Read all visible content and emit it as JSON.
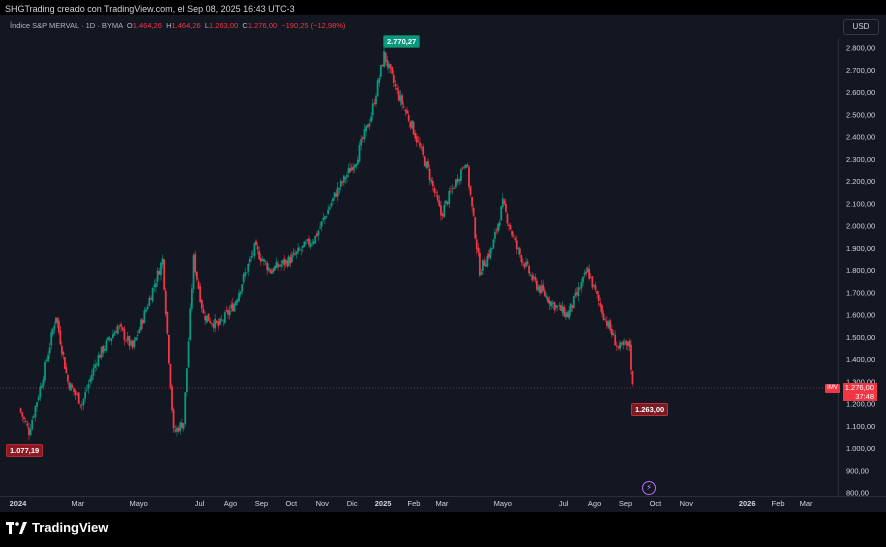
{
  "header": {
    "caption": "SHGTrading creado con TradingView.com, el Sep 08, 2025 16:43 UTC-3",
    "symbol_line": "Índice S&P MERVAL · 1D · BYMA",
    "o_label": "O",
    "o_value": "1.464,26",
    "h_label": "H",
    "h_value": "1.464,26",
    "l_label": "L",
    "l_value": "1.263,00",
    "c_label": "C",
    "c_value": "1.276,00",
    "change": "−190,25 (−12,98%)"
  },
  "currency_button": "USD",
  "price_axis": {
    "ticks": [
      "2.800,00",
      "2.700,00",
      "2.600,00",
      "2.500,00",
      "2.400,00",
      "2.300,00",
      "2.200,00",
      "2.100,00",
      "2.000,00",
      "1.900,00",
      "1.800,00",
      "1.700,00",
      "1.600,00",
      "1.500,00",
      "1.400,00",
      "1.300,00",
      "1.200,00",
      "1.100,00",
      "1.000,00",
      "900,00",
      "800,00"
    ],
    "last_price": "1.276,00",
    "countdown": "37:48",
    "symbol_badge": "IMV"
  },
  "time_axis": {
    "labels": [
      {
        "text": "2024",
        "bold": true
      },
      {
        "text": "Mar",
        "bold": false
      },
      {
        "text": "Mayo",
        "bold": false
      },
      {
        "text": "Jul",
        "bold": false
      },
      {
        "text": "Ago",
        "bold": false
      },
      {
        "text": "Sep",
        "bold": false
      },
      {
        "text": "Oct",
        "bold": false
      },
      {
        "text": "Nov",
        "bold": false
      },
      {
        "text": "Dic",
        "bold": false
      },
      {
        "text": "2025",
        "bold": true
      },
      {
        "text": "Feb",
        "bold": false
      },
      {
        "text": "Mar",
        "bold": false
      },
      {
        "text": "Mayo",
        "bold": false
      },
      {
        "text": "Jul",
        "bold": false
      },
      {
        "text": "Ago",
        "bold": false
      },
      {
        "text": "Sep",
        "bold": false
      },
      {
        "text": "Oct",
        "bold": false
      },
      {
        "text": "Nov",
        "bold": false
      },
      {
        "text": "2026",
        "bold": true
      },
      {
        "text": "Feb",
        "bold": false
      },
      {
        "text": "Mar",
        "bold": false
      }
    ]
  },
  "annotations": {
    "high": "2.770,27",
    "low_2024": "1.077,19",
    "low_recent": "1.263,00"
  },
  "footer": {
    "brand": "TradingView"
  },
  "colors": {
    "up": "#089981",
    "down": "#f23645",
    "background": "#131722"
  },
  "chart_data": {
    "type": "candlestick",
    "y_range": [
      800,
      2800
    ],
    "x_range": [
      "2024-01",
      "2026-03"
    ],
    "price_path": [
      {
        "date": "2024-01-02",
        "close": 1180
      },
      {
        "date": "2024-01-12",
        "close": 1077
      },
      {
        "date": "2024-01-25",
        "close": 1300
      },
      {
        "date": "2024-02-08",
        "close": 1600
      },
      {
        "date": "2024-02-20",
        "close": 1300
      },
      {
        "date": "2024-03-05",
        "close": 1200
      },
      {
        "date": "2024-03-20",
        "close": 1400
      },
      {
        "date": "2024-04-10",
        "close": 1550
      },
      {
        "date": "2024-04-25",
        "close": 1450
      },
      {
        "date": "2024-05-10",
        "close": 1650
      },
      {
        "date": "2024-05-25",
        "close": 1850
      },
      {
        "date": "2024-06-05",
        "close": 1070
      },
      {
        "date": "2024-06-15",
        "close": 1120
      },
      {
        "date": "2024-06-25",
        "close": 1850
      },
      {
        "date": "2024-07-05",
        "close": 1600
      },
      {
        "date": "2024-07-20",
        "close": 1550
      },
      {
        "date": "2024-08-05",
        "close": 1650
      },
      {
        "date": "2024-08-25",
        "close": 1900
      },
      {
        "date": "2024-09-10",
        "close": 1800
      },
      {
        "date": "2024-09-30",
        "close": 1850
      },
      {
        "date": "2024-10-25",
        "close": 1950
      },
      {
        "date": "2024-11-15",
        "close": 2150
      },
      {
        "date": "2024-12-05",
        "close": 2300
      },
      {
        "date": "2024-12-20",
        "close": 2500
      },
      {
        "date": "2025-01-02",
        "close": 2770
      },
      {
        "date": "2025-01-15",
        "close": 2600
      },
      {
        "date": "2025-01-30",
        "close": 2450
      },
      {
        "date": "2025-02-15",
        "close": 2250
      },
      {
        "date": "2025-02-28",
        "close": 2050
      },
      {
        "date": "2025-03-15",
        "close": 2200
      },
      {
        "date": "2025-03-25",
        "close": 2300
      },
      {
        "date": "2025-04-08",
        "close": 1800
      },
      {
        "date": "2025-04-20",
        "close": 1900
      },
      {
        "date": "2025-05-01",
        "close": 2100
      },
      {
        "date": "2025-05-15",
        "close": 1900
      },
      {
        "date": "2025-06-01",
        "close": 1750
      },
      {
        "date": "2025-06-20",
        "close": 1650
      },
      {
        "date": "2025-07-05",
        "close": 1600
      },
      {
        "date": "2025-07-25",
        "close": 1800
      },
      {
        "date": "2025-08-10",
        "close": 1600
      },
      {
        "date": "2025-08-25",
        "close": 1450
      },
      {
        "date": "2025-09-05",
        "close": 1464
      },
      {
        "date": "2025-09-08",
        "close": 1276
      }
    ]
  }
}
